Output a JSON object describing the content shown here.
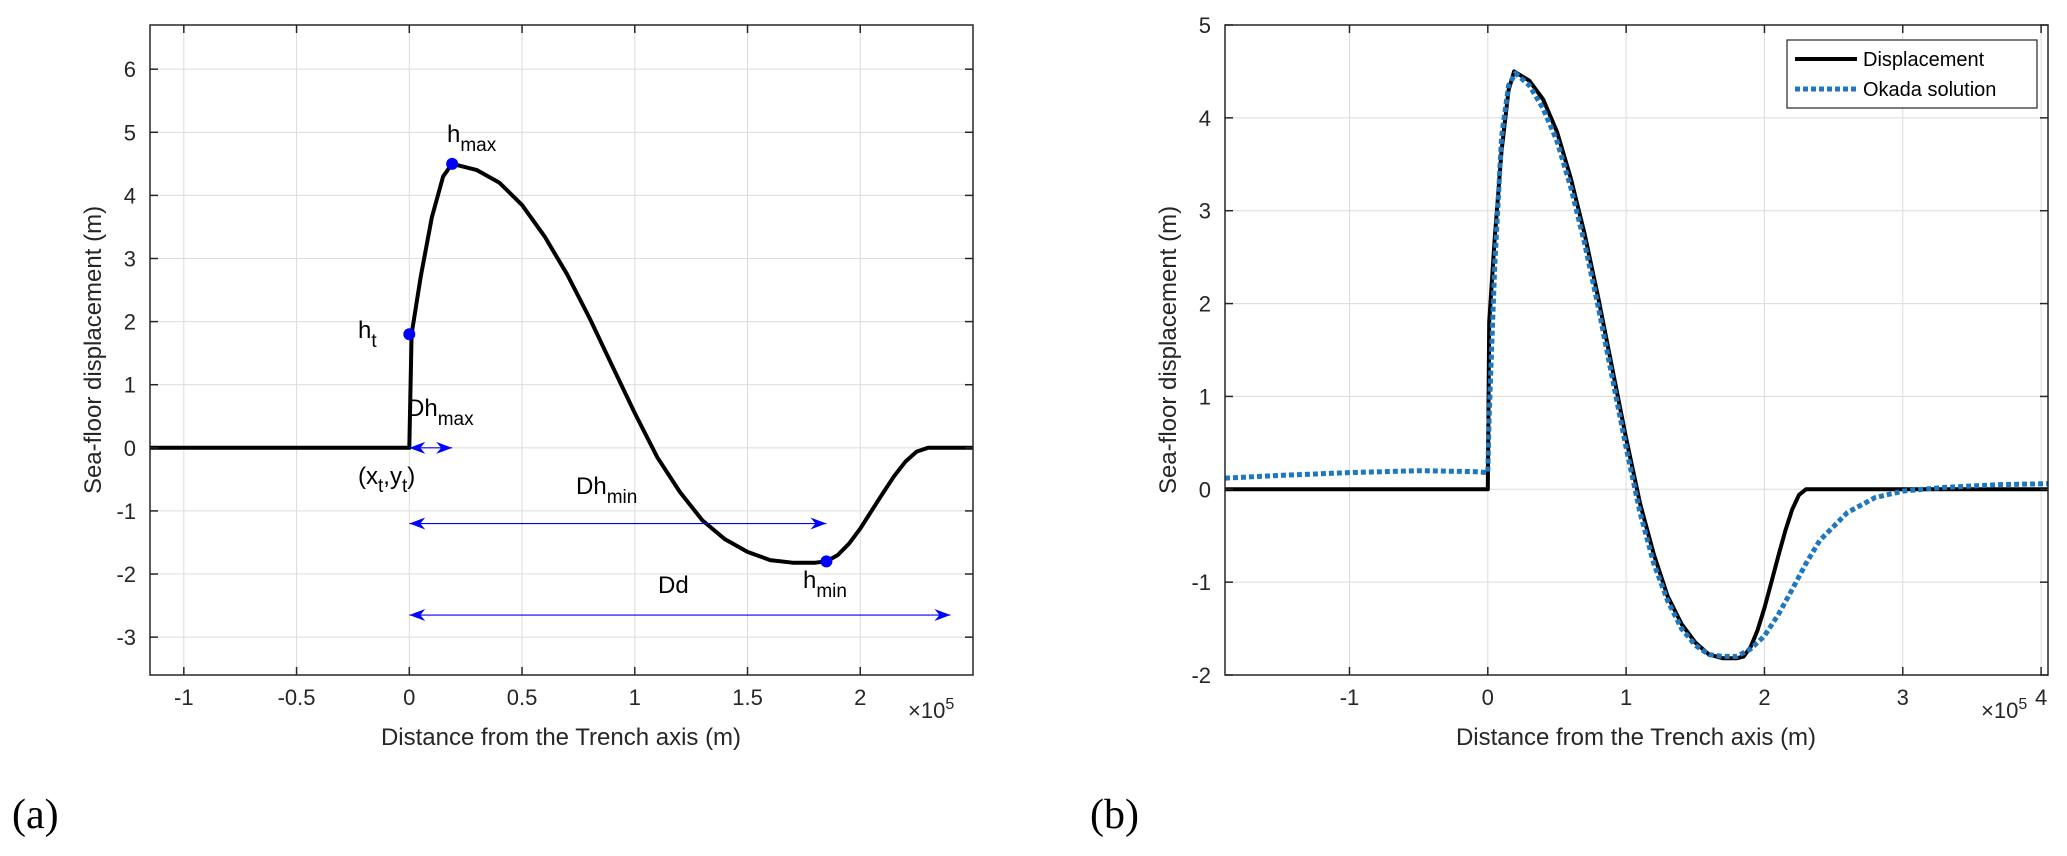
{
  "colors": {
    "displacement": "#000000",
    "okada": "#1f77c0",
    "annotation": "#0000ff",
    "axes": "#262626",
    "grid": "#dcdcdc"
  },
  "chart_data": [
    {
      "panel_label": "(a)",
      "type": "line",
      "xlabel": "Distance from the Trench axis (m)",
      "ylabel": "Sea-floor displacement (m)",
      "x_scale_label": "×10",
      "x_scale_exp": "5",
      "xlim": [
        -1.15,
        2.5
      ],
      "ylim": [
        -3.6,
        6.7
      ],
      "xticks": [
        -1,
        -0.5,
        0,
        0.5,
        1,
        1.5,
        2
      ],
      "xtick_labels": [
        "-1",
        "-0.5",
        "0",
        "0.5",
        "1",
        "1.5",
        "2"
      ],
      "yticks": [
        -3,
        -2,
        -1,
        0,
        1,
        2,
        3,
        4,
        5,
        6
      ],
      "ytick_labels": [
        "-3",
        "-2",
        "-1",
        "0",
        "1",
        "2",
        "3",
        "4",
        "5",
        "6"
      ],
      "grid": true,
      "series": [
        {
          "name": "Displacement",
          "style": "solid",
          "points": [
            [
              -1.15,
              0
            ],
            [
              0,
              0
            ],
            [
              0.01,
              1.8
            ],
            [
              0.05,
              2.7
            ],
            [
              0.1,
              3.65
            ],
            [
              0.15,
              4.3
            ],
            [
              0.19,
              4.5
            ],
            [
              0.3,
              4.4
            ],
            [
              0.4,
              4.2
            ],
            [
              0.5,
              3.85
            ],
            [
              0.6,
              3.35
            ],
            [
              0.7,
              2.75
            ],
            [
              0.8,
              2.05
            ],
            [
              0.9,
              1.3
            ],
            [
              1.0,
              0.55
            ],
            [
              1.1,
              -0.15
            ],
            [
              1.2,
              -0.7
            ],
            [
              1.3,
              -1.15
            ],
            [
              1.4,
              -1.45
            ],
            [
              1.5,
              -1.65
            ],
            [
              1.6,
              -1.78
            ],
            [
              1.7,
              -1.82
            ],
            [
              1.8,
              -1.82
            ],
            [
              1.85,
              -1.8
            ],
            [
              1.9,
              -1.7
            ],
            [
              1.95,
              -1.52
            ],
            [
              2.0,
              -1.28
            ],
            [
              2.05,
              -1.0
            ],
            [
              2.1,
              -0.72
            ],
            [
              2.15,
              -0.45
            ],
            [
              2.2,
              -0.22
            ],
            [
              2.25,
              -0.06
            ],
            [
              2.3,
              0
            ],
            [
              2.5,
              0
            ]
          ]
        }
      ],
      "markers": [
        {
          "name": "h_t",
          "x": 0.0,
          "y": 1.8
        },
        {
          "name": "h_max",
          "x": 0.19,
          "y": 4.5
        },
        {
          "name": "h_min",
          "x": 1.85,
          "y": -1.8
        }
      ],
      "arrows": [
        {
          "label": "Dh_max",
          "x0": 0.0,
          "x1": 0.19,
          "y": 0
        },
        {
          "label": "Dh_min",
          "x0": 0.0,
          "x1": 1.85,
          "y": -1.2
        },
        {
          "label": "Dd",
          "x0": 0.0,
          "x1": 2.4,
          "y": -2.65
        }
      ],
      "annotations": {
        "ht_base": "h",
        "ht_sub": "t",
        "hmax_base": "h",
        "hmax_sub": "max",
        "hmin_base": "h",
        "hmin_sub": "min",
        "dhmax_base": "Dh",
        "dhmax_sub": "max",
        "dhmin_base": "Dh",
        "dhmin_sub": "min",
        "dd": "Dd",
        "xt_open": "(x",
        "xt_sub": "t",
        "xt_mid": ",y",
        "yt_sub": "t",
        "xt_close": ")"
      }
    },
    {
      "panel_label": "(b)",
      "type": "line",
      "xlabel": "Distance from the Trench axis (m)",
      "ylabel": "Sea-floor displacement (m)",
      "x_scale_label": "×10",
      "x_scale_exp": "5",
      "xlim": [
        -1.9,
        4.05
      ],
      "ylim": [
        -2,
        5
      ],
      "xticks": [
        -1,
        0,
        1,
        2,
        3,
        4
      ],
      "xtick_labels": [
        "-1",
        "0",
        "1",
        "2",
        "3",
        "4"
      ],
      "yticks": [
        -2,
        -1,
        0,
        1,
        2,
        3,
        4,
        5
      ],
      "ytick_labels": [
        "-2",
        "-1",
        "0",
        "1",
        "2",
        "3",
        "4",
        "5"
      ],
      "grid": true,
      "legend": {
        "position": "top-right",
        "entries": [
          "Displacement",
          "Okada solution"
        ]
      },
      "series": [
        {
          "name": "Displacement",
          "style": "solid",
          "points": [
            [
              -1.9,
              0
            ],
            [
              0,
              0
            ],
            [
              0.01,
              1.8
            ],
            [
              0.05,
              2.7
            ],
            [
              0.1,
              3.65
            ],
            [
              0.15,
              4.3
            ],
            [
              0.19,
              4.5
            ],
            [
              0.3,
              4.4
            ],
            [
              0.4,
              4.2
            ],
            [
              0.5,
              3.85
            ],
            [
              0.6,
              3.35
            ],
            [
              0.7,
              2.75
            ],
            [
              0.8,
              2.05
            ],
            [
              0.9,
              1.3
            ],
            [
              1.0,
              0.55
            ],
            [
              1.1,
              -0.15
            ],
            [
              1.2,
              -0.7
            ],
            [
              1.3,
              -1.15
            ],
            [
              1.4,
              -1.45
            ],
            [
              1.5,
              -1.65
            ],
            [
              1.6,
              -1.78
            ],
            [
              1.7,
              -1.82
            ],
            [
              1.8,
              -1.82
            ],
            [
              1.85,
              -1.8
            ],
            [
              1.9,
              -1.7
            ],
            [
              1.95,
              -1.52
            ],
            [
              2.0,
              -1.28
            ],
            [
              2.05,
              -1.0
            ],
            [
              2.1,
              -0.72
            ],
            [
              2.15,
              -0.45
            ],
            [
              2.2,
              -0.22
            ],
            [
              2.25,
              -0.06
            ],
            [
              2.3,
              0
            ],
            [
              4.05,
              0
            ]
          ]
        },
        {
          "name": "Okada solution",
          "style": "dotted",
          "points": [
            [
              -1.9,
              0.12
            ],
            [
              -1.5,
              0.15
            ],
            [
              -1.0,
              0.18
            ],
            [
              -0.5,
              0.2
            ],
            [
              -0.1,
              0.19
            ],
            [
              0,
              0.18
            ],
            [
              0.01,
              0.8
            ],
            [
              0.05,
              2.4
            ],
            [
              0.1,
              3.8
            ],
            [
              0.15,
              4.35
            ],
            [
              0.2,
              4.48
            ],
            [
              0.3,
              4.35
            ],
            [
              0.4,
              4.1
            ],
            [
              0.5,
              3.75
            ],
            [
              0.6,
              3.25
            ],
            [
              0.7,
              2.65
            ],
            [
              0.8,
              1.95
            ],
            [
              0.9,
              1.2
            ],
            [
              1.0,
              0.45
            ],
            [
              1.1,
              -0.25
            ],
            [
              1.2,
              -0.8
            ],
            [
              1.3,
              -1.2
            ],
            [
              1.4,
              -1.5
            ],
            [
              1.5,
              -1.68
            ],
            [
              1.6,
              -1.78
            ],
            [
              1.7,
              -1.8
            ],
            [
              1.8,
              -1.8
            ],
            [
              1.9,
              -1.72
            ],
            [
              2.0,
              -1.58
            ],
            [
              2.1,
              -1.35
            ],
            [
              2.2,
              -1.08
            ],
            [
              2.3,
              -0.8
            ],
            [
              2.4,
              -0.55
            ],
            [
              2.6,
              -0.25
            ],
            [
              2.8,
              -0.09
            ],
            [
              3.0,
              -0.02
            ],
            [
              3.3,
              0.02
            ],
            [
              3.7,
              0.05
            ],
            [
              4.05,
              0.06
            ]
          ]
        }
      ]
    }
  ]
}
